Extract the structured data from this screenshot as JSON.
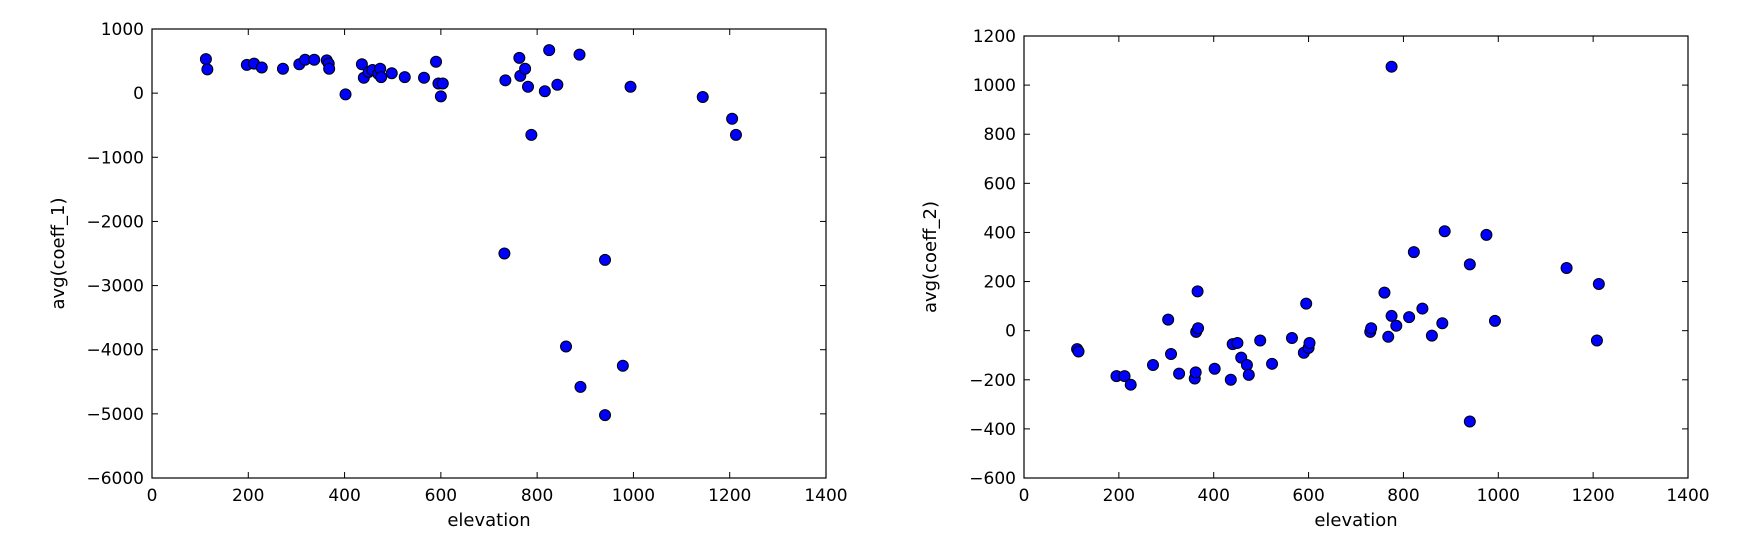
{
  "chart_data": [
    {
      "type": "scatter",
      "title": "",
      "xlabel": "elevation",
      "ylabel": "avg(coeff_1)",
      "xlim": [
        0,
        1400
      ],
      "ylim": [
        -6000,
        1000
      ],
      "xticks": [
        0,
        200,
        400,
        600,
        800,
        1000,
        1200,
        1400
      ],
      "yticks": [
        -6000,
        -5000,
        -4000,
        -3000,
        -2000,
        -1000,
        0,
        1000
      ],
      "grid": false,
      "marker_color": "#0000ff",
      "series": [
        {
          "points": [
            [
              112,
              530
            ],
            [
              115,
              370
            ],
            [
              197,
              440
            ],
            [
              212,
              460
            ],
            [
              228,
              400
            ],
            [
              272,
              380
            ],
            [
              306,
              450
            ],
            [
              318,
              520
            ],
            [
              337,
              520
            ],
            [
              363,
              510
            ],
            [
              367,
              460
            ],
            [
              368,
              380
            ],
            [
              402,
              -20
            ],
            [
              436,
              450
            ],
            [
              440,
              240
            ],
            [
              450,
              330
            ],
            [
              458,
              360
            ],
            [
              470,
              300
            ],
            [
              474,
              380
            ],
            [
              476,
              250
            ],
            [
              498,
              310
            ],
            [
              525,
              250
            ],
            [
              565,
              240
            ],
            [
              590,
              490
            ],
            [
              595,
              150
            ],
            [
              604,
              150
            ],
            [
              600,
              -50
            ],
            [
              734,
              200
            ],
            [
              763,
              550
            ],
            [
              765,
              270
            ],
            [
              775,
              380
            ],
            [
              781,
              100
            ],
            [
              788,
              -650
            ],
            [
              816,
              30
            ],
            [
              825,
              670
            ],
            [
              842,
              130
            ],
            [
              888,
              600
            ],
            [
              994,
              100
            ],
            [
              1144,
              -60
            ],
            [
              1205,
              -400
            ],
            [
              1213,
              -650
            ],
            [
              732,
              -2500
            ],
            [
              941,
              -2600
            ],
            [
              860,
              -3950
            ],
            [
              978,
              -4250
            ],
            [
              890,
              -4580
            ],
            [
              941,
              -5020
            ]
          ]
        }
      ]
    },
    {
      "type": "scatter",
      "title": "",
      "xlabel": "elevation",
      "ylabel": "avg(coeff_2)",
      "xlim": [
        0,
        1400
      ],
      "ylim": [
        -600,
        1200
      ],
      "xticks": [
        0,
        200,
        400,
        600,
        800,
        1000,
        1200,
        1400
      ],
      "yticks": [
        -600,
        -400,
        -200,
        0,
        200,
        400,
        600,
        800,
        1000,
        1200
      ],
      "grid": false,
      "marker_color": "#0000ff",
      "series": [
        {
          "points": [
            [
              112,
              -75
            ],
            [
              115,
              -85
            ],
            [
              195,
              -185
            ],
            [
              212,
              -185
            ],
            [
              225,
              -220
            ],
            [
              272,
              -140
            ],
            [
              304,
              45
            ],
            [
              310,
              -95
            ],
            [
              327,
              -175
            ],
            [
              360,
              -195
            ],
            [
              362,
              -170
            ],
            [
              363,
              -5
            ],
            [
              367,
              10
            ],
            [
              366,
              160
            ],
            [
              402,
              -155
            ],
            [
              436,
              -200
            ],
            [
              440,
              -55
            ],
            [
              450,
              -50
            ],
            [
              458,
              -110
            ],
            [
              470,
              -140
            ],
            [
              474,
              -180
            ],
            [
              498,
              -40
            ],
            [
              523,
              -135
            ],
            [
              565,
              -30
            ],
            [
              590,
              -90
            ],
            [
              595,
              110
            ],
            [
              600,
              -70
            ],
            [
              602,
              -50
            ],
            [
              730,
              -5
            ],
            [
              732,
              10
            ],
            [
              760,
              155
            ],
            [
              768,
              -25
            ],
            [
              775,
              60
            ],
            [
              785,
              20
            ],
            [
              775,
              1075
            ],
            [
              812,
              55
            ],
            [
              822,
              320
            ],
            [
              840,
              90
            ],
            [
              860,
              -20
            ],
            [
              882,
              30
            ],
            [
              887,
              405
            ],
            [
              940,
              270
            ],
            [
              940,
              -370
            ],
            [
              975,
              390
            ],
            [
              993,
              40
            ],
            [
              1144,
              255
            ],
            [
              1208,
              -40
            ],
            [
              1212,
              190
            ]
          ]
        }
      ]
    }
  ]
}
